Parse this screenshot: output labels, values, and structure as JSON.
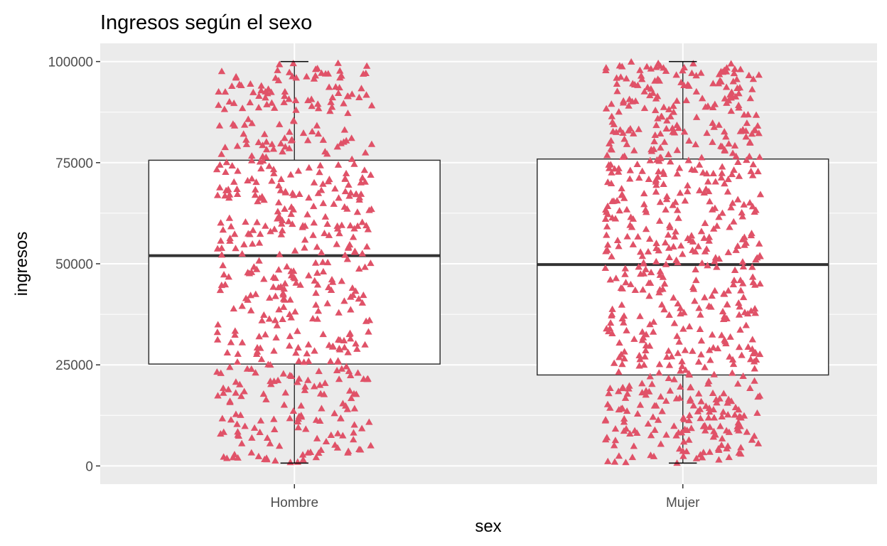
{
  "chart_data": {
    "type": "boxplot",
    "title": "Ingresos según el sexo",
    "xlabel": "sex",
    "ylabel": "ingresos",
    "categories": [
      "Hombre",
      "Mujer"
    ],
    "ylim": [
      -4500,
      104500
    ],
    "y_ticks": [
      0,
      25000,
      50000,
      75000,
      100000
    ],
    "y_tick_labels": [
      "0",
      "25000",
      "50000",
      "75000",
      "100000"
    ],
    "grid": true,
    "legend": "none",
    "point_color": "#e05268",
    "point_shape": "triangle",
    "box_fill": "#ffffff",
    "panel_color": "#ebebeb",
    "boxes": [
      {
        "category": "Hombre",
        "min": 700,
        "q1": 25200,
        "median": 52000,
        "q3": 75600,
        "max": 100000,
        "n_points": 560
      },
      {
        "category": "Mujer",
        "min": 700,
        "q1": 22500,
        "median": 49800,
        "q3": 75900,
        "max": 100000,
        "n_points": 700
      }
    ]
  }
}
